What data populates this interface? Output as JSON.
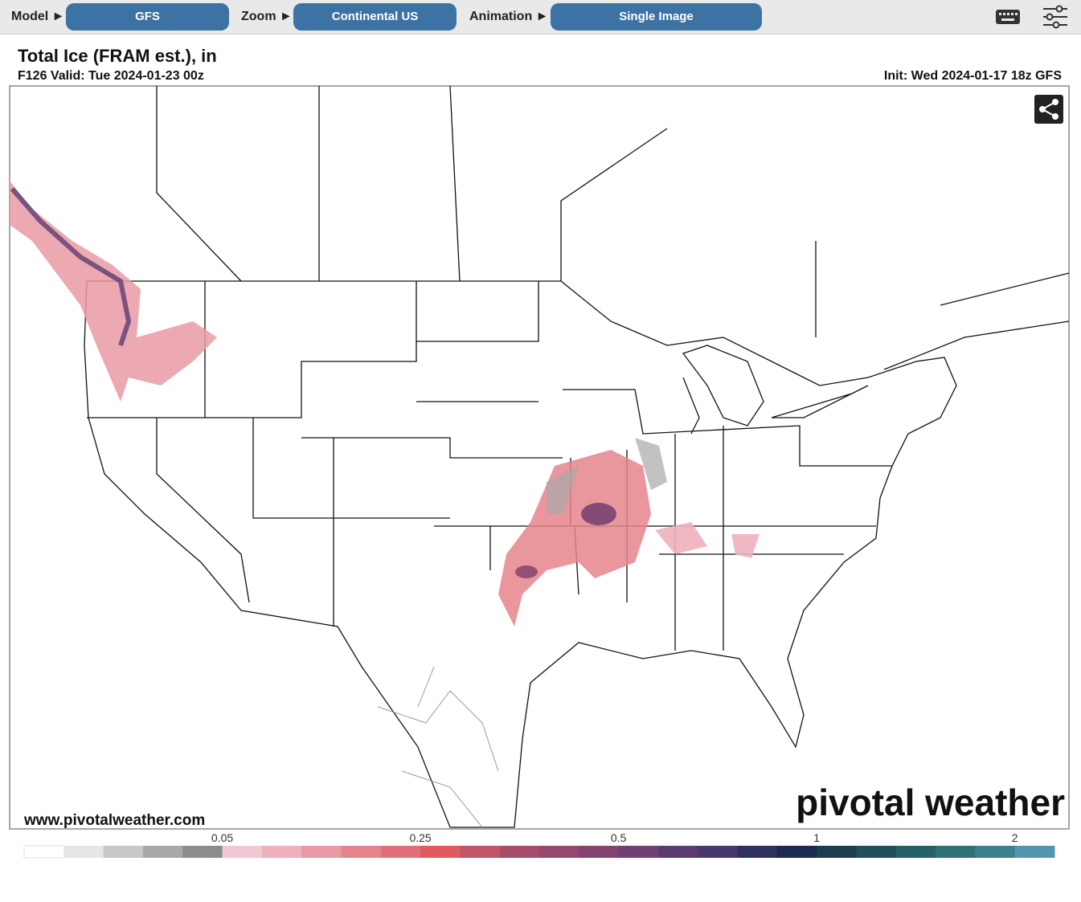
{
  "toolbar": {
    "model_label": "Model ►",
    "model": "GFS",
    "zoom_label": "Zoom ►",
    "zoom": "Continental US",
    "animation_label": "Animation ►",
    "animation": "Single Image"
  },
  "header": {
    "title": "Total Ice (FRAM est.), in",
    "valid": "F126 Valid: Tue 2024-01-23 00z",
    "init": "Init: Wed 2024-01-17 18z GFS"
  },
  "map": {
    "website": "www.pivotalweather.com",
    "brand": "pivotal weather"
  },
  "colorbar": {
    "colors": [
      "#ffffff",
      "#e6e6e6",
      "#c8c8c8",
      "#a8a8a8",
      "#8c8c8c",
      "#f2c8d4",
      "#eeb0bc",
      "#e99aa4",
      "#e5848c",
      "#e07078",
      "#e05a60",
      "#c05468",
      "#a84c6c",
      "#984870",
      "#844470",
      "#704070",
      "#5c3c70",
      "#483870",
      "#303060",
      "#1c2a50",
      "#1c3c50",
      "#20505c",
      "#286068",
      "#307078",
      "#3c8090",
      "#5496b0"
    ],
    "boundary_labels": [
      null,
      null,
      null,
      null,
      null,
      "0.05",
      null,
      null,
      null,
      null,
      "0.25",
      null,
      null,
      null,
      null,
      "0.5",
      null,
      null,
      null,
      null,
      "1",
      null,
      null,
      null,
      null,
      "2",
      null
    ]
  }
}
